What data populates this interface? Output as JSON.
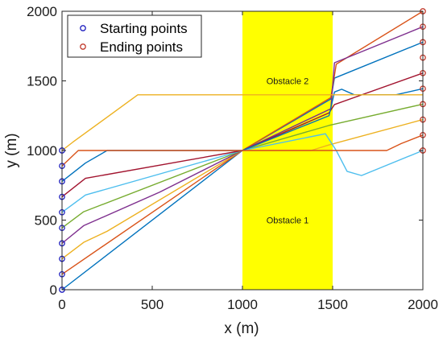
{
  "chart_data": {
    "type": "line",
    "xlabel": "x (m)",
    "ylabel": "y (m)",
    "xlim": [
      0,
      2000
    ],
    "ylim": [
      0,
      2000
    ],
    "xticks": [
      "0",
      "500",
      "1000",
      "1500",
      "2000"
    ],
    "yticks": [
      "0",
      "500",
      "1000",
      "1500",
      "2000"
    ],
    "grid": false,
    "legend_position": "top-left",
    "legend": [
      {
        "label": "Starting points",
        "marker_color": "#1f1fbf"
      },
      {
        "label": "Ending points",
        "marker_color": "#c0392b"
      }
    ],
    "obstacles": [
      {
        "label": "Obstacle 1",
        "x": [
          1000,
          1500
        ],
        "y": [
          0,
          1000
        ],
        "color": "#ffff00"
      },
      {
        "label": "Obstacle 2",
        "x": [
          1000,
          1500
        ],
        "y": [
          1000,
          2000
        ],
        "color": "#ffff00"
      }
    ],
    "starting_points": [
      [
        0,
        0
      ],
      [
        0,
        111
      ],
      [
        0,
        222
      ],
      [
        0,
        333
      ],
      [
        0,
        444
      ],
      [
        0,
        556
      ],
      [
        0,
        667
      ],
      [
        0,
        778
      ],
      [
        0,
        889
      ],
      [
        0,
        1000
      ]
    ],
    "ending_points": [
      [
        2000,
        1000
      ],
      [
        2000,
        1111
      ],
      [
        2000,
        1222
      ],
      [
        2000,
        1333
      ],
      [
        2000,
        1444
      ],
      [
        2000,
        1556
      ],
      [
        2000,
        1667
      ],
      [
        2000,
        1778
      ],
      [
        2000,
        1889
      ],
      [
        2000,
        2000
      ]
    ],
    "series": [
      {
        "color": "#0072bd",
        "points": [
          [
            0,
            0
          ],
          [
            1000,
            1000
          ],
          [
            1490,
            1370
          ],
          [
            1510,
            1520
          ],
          [
            2000,
            1778
          ]
        ]
      },
      {
        "color": "#d95319",
        "points": [
          [
            0,
            111
          ],
          [
            1000,
            1000
          ],
          [
            1490,
            1380
          ],
          [
            1520,
            1620
          ],
          [
            2000,
            2000
          ]
        ]
      },
      {
        "color": "#edb120",
        "points": [
          [
            0,
            222
          ],
          [
            120,
            340
          ],
          [
            250,
            420
          ],
          [
            1000,
            1000
          ],
          [
            1380,
            1000
          ],
          [
            1480,
            1040
          ],
          [
            2000,
            1222
          ]
        ]
      },
      {
        "color": "#7e2f8e",
        "points": [
          [
            0,
            333
          ],
          [
            120,
            460
          ],
          [
            540,
            700
          ],
          [
            1000,
            1000
          ],
          [
            1490,
            1300
          ],
          [
            1510,
            1630
          ],
          [
            2000,
            1889
          ]
        ]
      },
      {
        "color": "#77ac30",
        "points": [
          [
            0,
            444
          ],
          [
            120,
            560
          ],
          [
            1000,
            1000
          ],
          [
            1480,
            1180
          ],
          [
            2000,
            1333
          ]
        ]
      },
      {
        "color": "#4dbeee",
        "points": [
          [
            0,
            556
          ],
          [
            130,
            680
          ],
          [
            1000,
            1000
          ],
          [
            1460,
            1120
          ],
          [
            1520,
            1000
          ],
          [
            1580,
            850
          ],
          [
            1660,
            820
          ],
          [
            2000,
            1000
          ]
        ]
      },
      {
        "color": "#a2142f",
        "points": [
          [
            0,
            667
          ],
          [
            130,
            800
          ],
          [
            1000,
            1000
          ],
          [
            1480,
            1270
          ],
          [
            1510,
            1330
          ],
          [
            2000,
            1556
          ]
        ]
      },
      {
        "color": "#0072bd",
        "points": [
          [
            0,
            778
          ],
          [
            130,
            910
          ],
          [
            250,
            1000
          ],
          [
            1000,
            1000
          ],
          [
            1480,
            1250
          ],
          [
            1510,
            1420
          ],
          [
            1550,
            1440
          ],
          [
            1620,
            1400
          ],
          [
            1850,
            1400
          ],
          [
            2000,
            1444
          ]
        ]
      },
      {
        "color": "#d95319",
        "points": [
          [
            0,
            889
          ],
          [
            90,
            1000
          ],
          [
            1000,
            1000
          ],
          [
            1800,
            1000
          ],
          [
            1880,
            1050
          ],
          [
            2000,
            1111
          ]
        ]
      },
      {
        "color": "#edb120",
        "points": [
          [
            0,
            1000
          ],
          [
            60,
            1060
          ],
          [
            420,
            1400
          ],
          [
            1500,
            1400
          ],
          [
            1590,
            1400
          ],
          [
            1750,
            1400
          ],
          [
            2000,
            1400
          ]
        ]
      }
    ]
  }
}
